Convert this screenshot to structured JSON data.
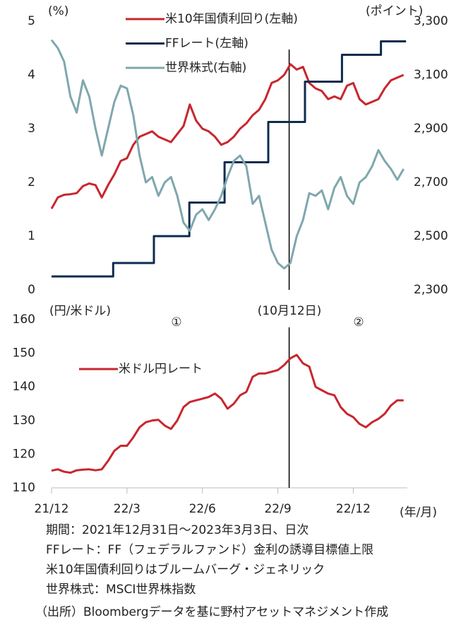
{
  "chart_data": [
    {
      "type": "line",
      "y_label": "(%)",
      "y2_label": "(ポイント)",
      "xlim": [
        0,
        14.15
      ],
      "ylim": [
        0,
        5
      ],
      "yticks": [
        0,
        1,
        2,
        3,
        4,
        5
      ],
      "y2lim": [
        2300,
        3300
      ],
      "y2ticks": [
        {
          "value": 2300,
          "label": "2,300"
        },
        {
          "value": 2500,
          "label": "2,500"
        },
        {
          "value": 2700,
          "label": "2,700"
        },
        {
          "value": 2900,
          "label": "2,900"
        },
        {
          "value": 3100,
          "label": "3,100"
        },
        {
          "value": 3300,
          "label": "3,300"
        }
      ],
      "vline": 9.45,
      "x": [
        0,
        0.25,
        0.5,
        0.75,
        1,
        1.25,
        1.5,
        1.75,
        2,
        2.25,
        2.5,
        2.75,
        3,
        3.25,
        3.5,
        3.75,
        4,
        4.25,
        4.5,
        4.75,
        5,
        5.25,
        5.5,
        5.75,
        6,
        6.25,
        6.5,
        6.75,
        7,
        7.25,
        7.5,
        7.75,
        8,
        8.25,
        8.5,
        8.75,
        9,
        9.25,
        9.5,
        9.75,
        10,
        10.25,
        10.5,
        10.75,
        11,
        11.25,
        11.5,
        11.75,
        12,
        12.25,
        12.5,
        12.75,
        13,
        13.25,
        13.5,
        13.75,
        14
      ],
      "series": [
        {
          "name": "米10年国債利回り(左軸)",
          "color": "#c8262e",
          "values": [
            1.51,
            1.72,
            1.77,
            1.78,
            1.8,
            1.93,
            1.98,
            1.95,
            1.72,
            1.95,
            2.15,
            2.4,
            2.45,
            2.7,
            2.85,
            2.9,
            2.95,
            2.85,
            2.8,
            2.75,
            2.9,
            3.05,
            3.45,
            3.15,
            3.0,
            2.95,
            2.85,
            2.7,
            2.75,
            2.85,
            3.0,
            3.1,
            3.25,
            3.35,
            3.55,
            3.85,
            3.9,
            4.0,
            4.2,
            4.1,
            4.15,
            3.85,
            3.75,
            3.7,
            3.55,
            3.6,
            3.55,
            3.8,
            3.85,
            3.55,
            3.45,
            3.5,
            3.55,
            3.75,
            3.9,
            3.95,
            4.0
          ]
        },
        {
          "name": "FFレート(左軸)",
          "color": "#0d2b4f",
          "x": [
            0,
            2.45,
            2.45,
            4.07,
            4.07,
            5.48,
            5.48,
            6.88,
            6.88,
            8.62,
            8.62,
            10.08,
            10.08,
            11.55,
            11.55,
            13.1,
            13.1,
            14.1
          ],
          "values": [
            0.25,
            0.25,
            0.5,
            0.5,
            1.0,
            1.0,
            1.625,
            1.625,
            2.375,
            2.375,
            3.125,
            3.125,
            3.875,
            3.875,
            4.375,
            4.375,
            4.625,
            4.625
          ]
        },
        {
          "name": "世界株式(右軸)",
          "color": "#7fa7ae",
          "axis": "y2",
          "values": [
            3230,
            3200,
            3150,
            3020,
            2960,
            3080,
            3020,
            2900,
            2800,
            2900,
            3000,
            3060,
            3050,
            2950,
            2800,
            2700,
            2720,
            2650,
            2700,
            2720,
            2650,
            2550,
            2520,
            2580,
            2600,
            2560,
            2600,
            2650,
            2720,
            2780,
            2800,
            2760,
            2620,
            2650,
            2550,
            2450,
            2400,
            2380,
            2400,
            2500,
            2560,
            2660,
            2650,
            2670,
            2600,
            2680,
            2720,
            2650,
            2620,
            2700,
            2720,
            2760,
            2820,
            2780,
            2750,
            2710,
            2750
          ]
        }
      ]
    },
    {
      "type": "line",
      "y_label": "(円/米ドル)",
      "x_label": "(年/月)",
      "xlim": [
        0,
        14.15
      ],
      "ylim": [
        110,
        160
      ],
      "yticks": [
        110,
        120,
        130,
        140,
        150,
        160
      ],
      "xticks": [
        {
          "value": 0,
          "label": "21/12"
        },
        {
          "value": 3,
          "label": "22/3"
        },
        {
          "value": 6,
          "label": "22/6"
        },
        {
          "value": 9,
          "label": "22/9"
        },
        {
          "value": 12,
          "label": "22/12"
        }
      ],
      "vline": 9.45,
      "annotations": [
        "①",
        "(10月12日)",
        "②"
      ],
      "x": [
        0,
        0.25,
        0.5,
        0.75,
        1,
        1.25,
        1.5,
        1.75,
        2,
        2.25,
        2.5,
        2.75,
        3,
        3.25,
        3.5,
        3.75,
        4,
        4.25,
        4.5,
        4.75,
        5,
        5.25,
        5.5,
        5.75,
        6,
        6.25,
        6.5,
        6.75,
        7,
        7.25,
        7.5,
        7.75,
        8,
        8.25,
        8.5,
        8.75,
        9,
        9.25,
        9.5,
        9.75,
        10,
        10.25,
        10.5,
        10.75,
        11,
        11.25,
        11.5,
        11.75,
        12,
        12.25,
        12.5,
        12.75,
        13,
        13.25,
        13.5,
        13.75,
        14
      ],
      "series": [
        {
          "name": "米ドル円レート",
          "color": "#c8262e",
          "values": [
            115.1,
            115.5,
            114.8,
            114.5,
            115.2,
            115.4,
            115.5,
            115.2,
            115.5,
            118,
            121,
            122.5,
            122.5,
            125,
            128,
            129.5,
            130,
            130.2,
            128.5,
            127.5,
            130,
            134,
            135.5,
            136,
            136.5,
            137,
            138,
            136.5,
            133.5,
            135,
            137.5,
            138.5,
            143,
            144,
            144,
            144.5,
            145,
            146.5,
            148.5,
            149.5,
            147,
            146,
            140,
            139,
            138,
            137.5,
            134,
            132,
            131,
            129,
            128,
            129.5,
            130.5,
            132,
            134.5,
            136,
            136
          ]
        }
      ]
    }
  ],
  "notes": [
    "期間：2021年12月31日～2023年3月3日、日次",
    "FFレート：FF（フェデラルファンド）金利の誘導目標値上限",
    "米10年国債利回りはブルームバーグ・ジェネリック",
    "世界株式：MSCI世界株指数",
    "（出所）Bloombergデータを基に野村アセットマネジメント作成"
  ]
}
